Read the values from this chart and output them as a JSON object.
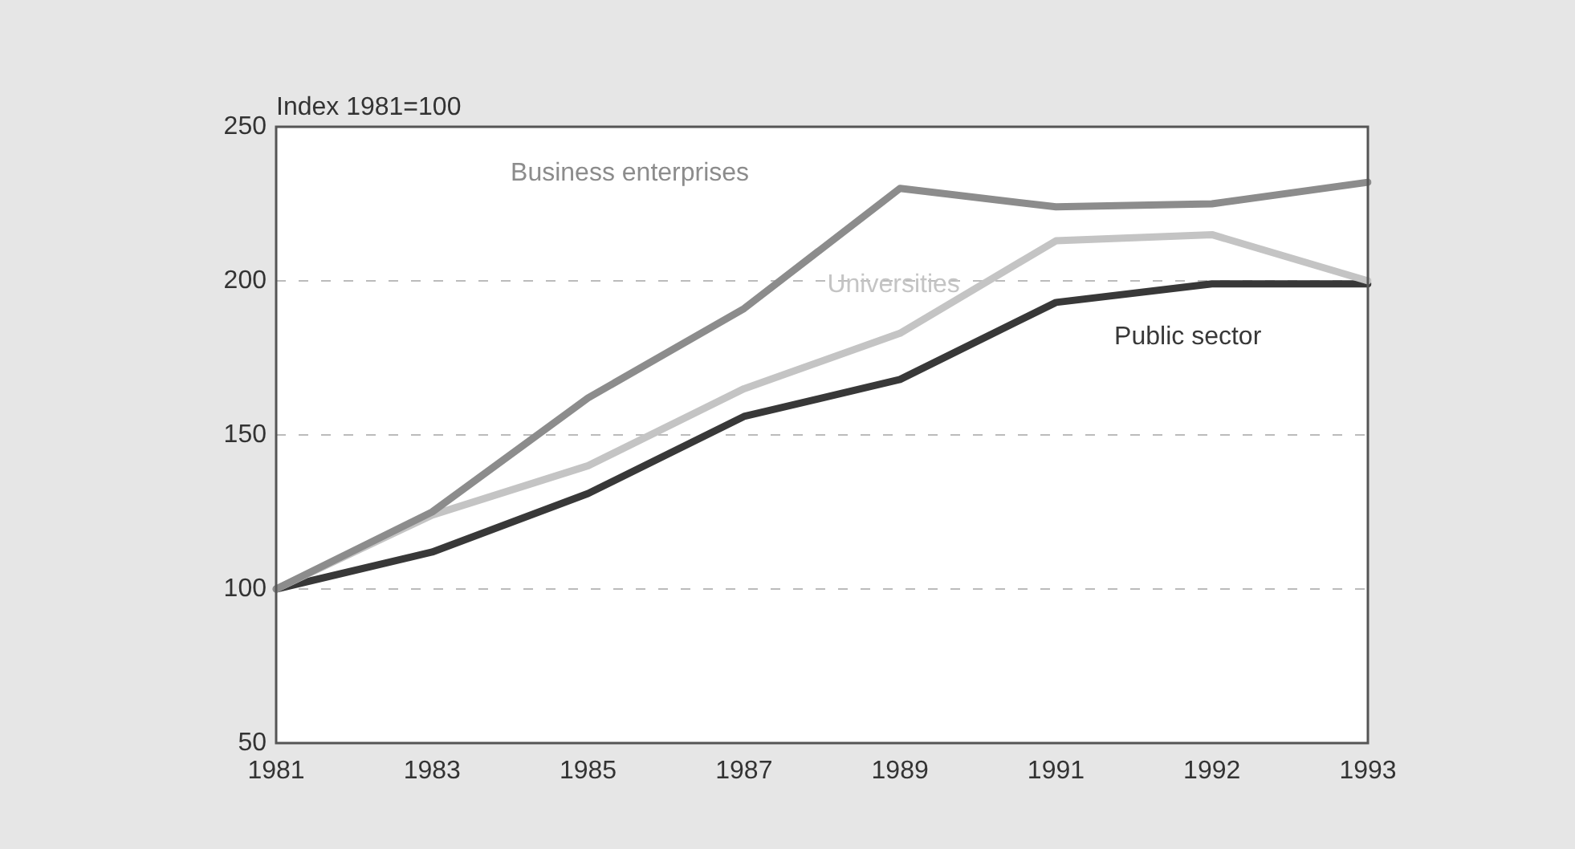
{
  "chart_data": {
    "type": "line",
    "ylabel": "Index 1981=100",
    "categories": [
      "1981",
      "1983",
      "1985",
      "1987",
      "1989",
      "1991",
      "1992",
      "1993"
    ],
    "series": [
      {
        "name": "Business enterprises",
        "color": "#8c8c8c",
        "values": [
          100,
          125,
          162,
          191,
          230,
          224,
          225,
          232
        ]
      },
      {
        "name": "Universities",
        "color": "#c4c4c4",
        "values": [
          100,
          124,
          140,
          165,
          183,
          213,
          215,
          200
        ]
      },
      {
        "name": "Public sector",
        "color": "#383838",
        "values": [
          100,
          112,
          131,
          156,
          168,
          193,
          199,
          199
        ]
      }
    ],
    "ylim": [
      50,
      250
    ],
    "yticks": [
      50,
      100,
      150,
      200,
      250
    ],
    "grid": "y",
    "legend": false,
    "marker": "none",
    "line_style": "solid"
  }
}
